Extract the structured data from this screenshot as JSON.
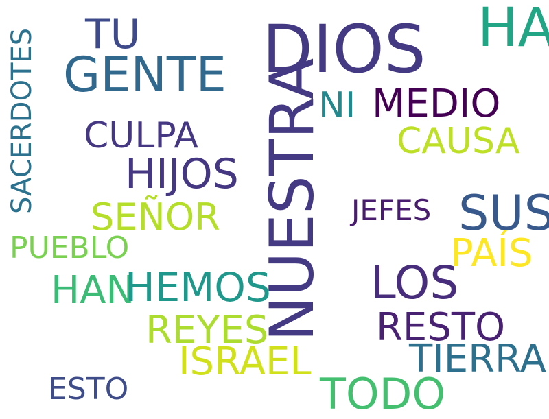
{
  "words": [
    {
      "key": "dios",
      "text": "DIOS",
      "color": "#443a83"
    },
    {
      "key": "nuestra",
      "text": "NUESTRA",
      "color": "#443a83"
    },
    {
      "key": "ha",
      "text": "HA",
      "color": "#21a585"
    },
    {
      "key": "tu",
      "text": "TU",
      "color": "#3e4a89"
    },
    {
      "key": "gente",
      "text": "GENTE",
      "color": "#31688e"
    },
    {
      "key": "ni",
      "text": "NI",
      "color": "#23898e"
    },
    {
      "key": "medio",
      "text": "MEDIO",
      "color": "#440154"
    },
    {
      "key": "culpa",
      "text": "CULPA",
      "color": "#453781"
    },
    {
      "key": "causa",
      "text": "CAUSA",
      "color": "#bddf26"
    },
    {
      "key": "hijos",
      "text": "HIJOS",
      "color": "#453781"
    },
    {
      "key": "sacerdotes",
      "text": "SACERDOTES",
      "color": "#2c728e"
    },
    {
      "key": "jefes",
      "text": "JEFES",
      "color": "#481c6e"
    },
    {
      "key": "sus",
      "text": "SUS",
      "color": "#38598c"
    },
    {
      "key": "senor",
      "text": "SEÑOR",
      "color": "#b5de2b"
    },
    {
      "key": "pueblo",
      "text": "PUEBLO",
      "color": "#7ad151"
    },
    {
      "key": "pais",
      "text": "PAÍS",
      "color": "#fde725"
    },
    {
      "key": "los",
      "text": "LOS",
      "color": "#472d7b"
    },
    {
      "key": "han",
      "text": "HAN",
      "color": "#3bbb75"
    },
    {
      "key": "hemos",
      "text": "HEMOS",
      "color": "#1f988b"
    },
    {
      "key": "reyes",
      "text": "REYES",
      "color": "#addc30"
    },
    {
      "key": "resto",
      "text": "RESTO",
      "color": "#482173"
    },
    {
      "key": "tierra",
      "text": "TIERRA",
      "color": "#2d708e"
    },
    {
      "key": "israel",
      "text": "ISRAEL",
      "color": "#d0e11c"
    },
    {
      "key": "esto",
      "text": "ESTO",
      "color": "#3e4c8a"
    },
    {
      "key": "todo",
      "text": "TODO",
      "color": "#44bf70"
    }
  ]
}
